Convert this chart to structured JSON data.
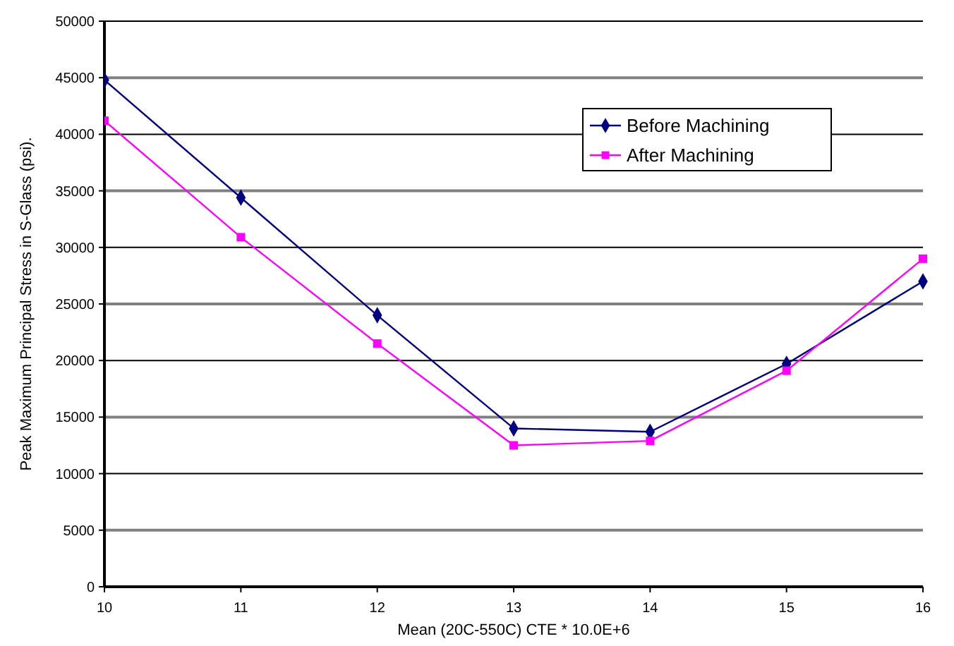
{
  "chart_data": {
    "type": "line",
    "xlabel": "Mean (20C-550C) CTE * 10.0E+6",
    "ylabel": "Peak Maximum Principal Stress in S-Glass (psi).",
    "x": [
      10,
      11,
      12,
      13,
      14,
      15,
      16
    ],
    "series": [
      {
        "name": "Before Machining",
        "color": "#000080",
        "marker": "diamond",
        "values": [
          44800,
          34400,
          24000,
          14000,
          13700,
          19700,
          27000
        ]
      },
      {
        "name": "After Machining",
        "color": "#ff00ff",
        "marker": "square",
        "values": [
          41200,
          30900,
          21500,
          12500,
          12900,
          19100,
          29000
        ]
      }
    ],
    "xlim": [
      10,
      16
    ],
    "xticks": [
      10,
      11,
      12,
      13,
      14,
      15,
      16
    ],
    "ylim": [
      0,
      50000
    ],
    "yticks": [
      0,
      5000,
      10000,
      15000,
      20000,
      25000,
      30000,
      35000,
      40000,
      45000,
      50000
    ],
    "grid": "y",
    "legend": "top right"
  }
}
